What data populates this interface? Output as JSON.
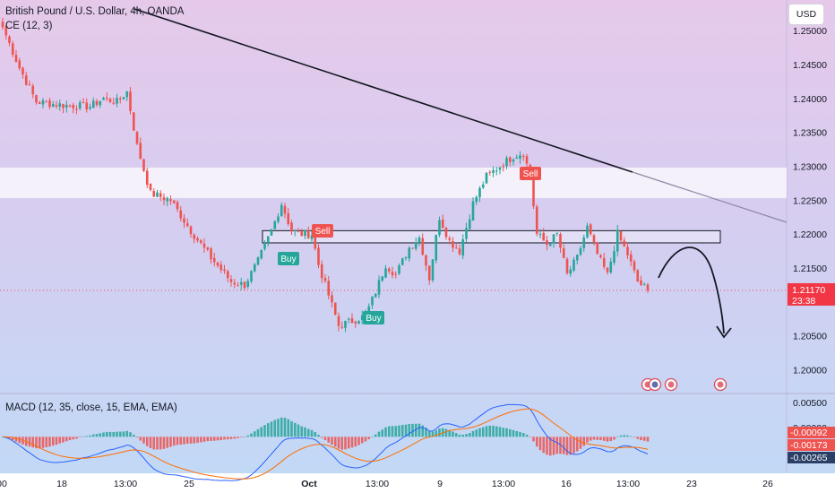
{
  "header": {
    "symbol_line": "British Pound / U.S. Dollar, 4h, OANDA",
    "indicator": "CE (12, 3)",
    "currency": "USD",
    "macd_label": "MACD (12, 35, close, 15, EMA, EMA)"
  },
  "price_axis": {
    "ticks": [
      "1.25000",
      "1.24500",
      "1.24000",
      "1.23500",
      "1.23000",
      "1.22500",
      "1.22000",
      "1.21500",
      "1.21000",
      "1.20500",
      "1.20000"
    ],
    "current_price": "1.21170",
    "countdown": "23:38"
  },
  "macd_axis": {
    "ticks": [
      "0.00500",
      "0.00000"
    ],
    "macd_value": "-0.00092",
    "signal_value": "-0.00173",
    "hist_value": "-0.00265"
  },
  "time_axis": [
    "00",
    "18",
    "13:00",
    "25",
    "Oct",
    "13:00",
    "9",
    "13:00",
    "16",
    "13:00",
    "23",
    "26"
  ],
  "signals": [
    {
      "label": "Buy",
      "type": "buy"
    },
    {
      "label": "Sell",
      "type": "sell"
    },
    {
      "label": "Buy",
      "type": "buy"
    },
    {
      "label": "Sell",
      "type": "sell"
    }
  ],
  "colors": {
    "up": "#26a69a",
    "down": "#ef5350",
    "macd_line": "#2962ff",
    "signal_line": "#ff6d00",
    "price_label": "#f23645",
    "hist_label": "#2a3f66"
  },
  "chart_data": [
    {
      "type": "candlestick",
      "title": "British Pound / U.S. Dollar, 4h, OANDA",
      "ylim": [
        1.1965,
        1.2545
      ],
      "x_ticks": [
        "00",
        "18",
        "13:00",
        "25",
        "Oct",
        "13:00",
        "9",
        "13:00",
        "16",
        "13:00",
        "23",
        "26"
      ],
      "close_path": [
        {
          "bar": 0,
          "close": 1.2505
        },
        {
          "bar": 5,
          "close": 1.2445
        },
        {
          "bar": 10,
          "close": 1.2395
        },
        {
          "bar": 18,
          "close": 1.239
        },
        {
          "bar": 26,
          "close": 1.2388
        },
        {
          "bar": 30,
          "close": 1.24
        },
        {
          "bar": 34,
          "close": 1.2395
        },
        {
          "bar": 37,
          "close": 1.241
        },
        {
          "bar": 40,
          "close": 1.233
        },
        {
          "bar": 44,
          "close": 1.226
        },
        {
          "bar": 50,
          "close": 1.225
        },
        {
          "bar": 56,
          "close": 1.2205
        },
        {
          "bar": 62,
          "close": 1.2165
        },
        {
          "bar": 68,
          "close": 1.213
        },
        {
          "bar": 72,
          "close": 1.2125
        },
        {
          "bar": 76,
          "close": 1.216
        },
        {
          "bar": 80,
          "close": 1.2205
        },
        {
          "bar": 83,
          "close": 1.2245
        },
        {
          "bar": 86,
          "close": 1.2205
        },
        {
          "bar": 89,
          "close": 1.22
        },
        {
          "bar": 92,
          "close": 1.22
        },
        {
          "bar": 94,
          "close": 1.2155
        },
        {
          "bar": 97,
          "close": 1.211
        },
        {
          "bar": 100,
          "close": 1.2065
        },
        {
          "bar": 104,
          "close": 1.2072
        },
        {
          "bar": 108,
          "close": 1.208
        },
        {
          "bar": 111,
          "close": 1.2115
        },
        {
          "bar": 114,
          "close": 1.2155
        },
        {
          "bar": 117,
          "close": 1.214
        },
        {
          "bar": 121,
          "close": 1.218
        },
        {
          "bar": 124,
          "close": 1.2195
        },
        {
          "bar": 127,
          "close": 1.2135
        },
        {
          "bar": 130,
          "close": 1.2225
        },
        {
          "bar": 133,
          "close": 1.219
        },
        {
          "bar": 136,
          "close": 1.2175
        },
        {
          "bar": 140,
          "close": 1.2245
        },
        {
          "bar": 144,
          "close": 1.2285
        },
        {
          "bar": 148,
          "close": 1.23
        },
        {
          "bar": 152,
          "close": 1.2315
        },
        {
          "bar": 155,
          "close": 1.232
        },
        {
          "bar": 157,
          "close": 1.2285
        },
        {
          "bar": 159,
          "close": 1.22
        },
        {
          "bar": 162,
          "close": 1.2185
        },
        {
          "bar": 165,
          "close": 1.22
        },
        {
          "bar": 168,
          "close": 1.214
        },
        {
          "bar": 171,
          "close": 1.2165
        },
        {
          "bar": 174,
          "close": 1.221
        },
        {
          "bar": 177,
          "close": 1.217
        },
        {
          "bar": 180,
          "close": 1.214
        },
        {
          "bar": 183,
          "close": 1.22
        },
        {
          "bar": 186,
          "close": 1.217
        },
        {
          "bar": 189,
          "close": 1.213
        },
        {
          "bar": 192,
          "close": 1.2117
        }
      ],
      "current_price": 1.2117,
      "zones": [
        {
          "kind": "highlight band",
          "from": 1.2253,
          "to": 1.2298
        },
        {
          "kind": "rectangle",
          "from": 1.2187,
          "to": 1.2205
        }
      ]
    },
    {
      "type": "bar",
      "title": "MACD (12, 35, close, 15, EMA, EMA)",
      "ylim": [
        -0.0058,
        0.0066
      ],
      "last_values": {
        "macd": -0.00092,
        "signal": -0.00173,
        "histogram": -0.00265
      }
    }
  ]
}
